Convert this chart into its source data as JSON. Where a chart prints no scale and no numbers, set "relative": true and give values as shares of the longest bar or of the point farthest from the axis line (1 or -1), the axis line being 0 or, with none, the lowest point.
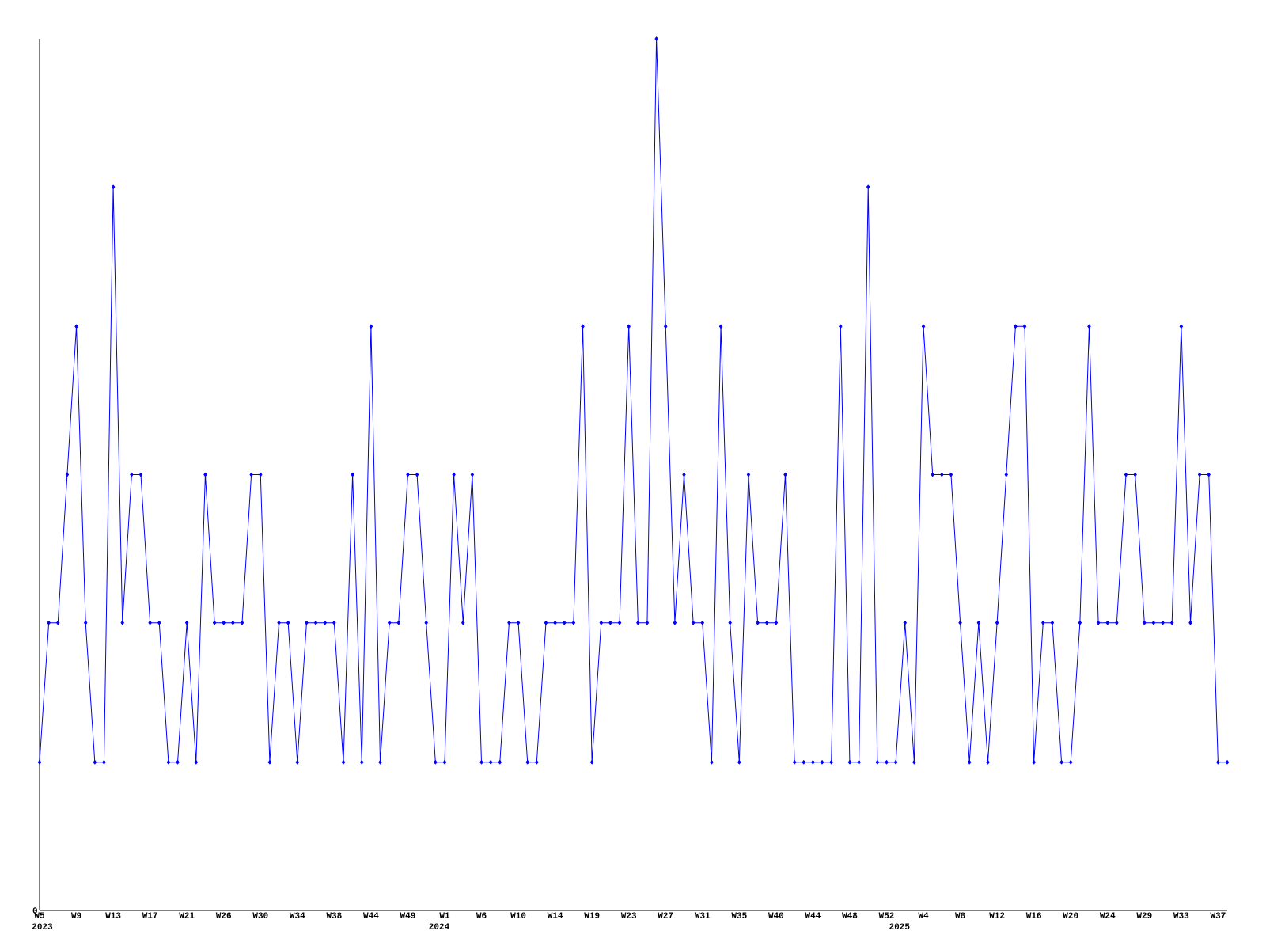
{
  "chart_data": {
    "type": "line",
    "relative": true,
    "marker": "diamond",
    "categories": [
      "W5",
      null,
      null,
      null,
      "W9",
      null,
      null,
      null,
      "W13",
      null,
      null,
      null,
      "W17",
      null,
      null,
      null,
      "W21",
      null,
      null,
      null,
      "W26",
      null,
      null,
      null,
      "W30",
      null,
      null,
      null,
      "W34",
      null,
      null,
      null,
      "W38",
      null,
      null,
      null,
      "W44",
      null,
      null,
      null,
      "W49",
      null,
      null,
      null,
      "W1",
      null,
      null,
      null,
      "W6",
      null,
      null,
      null,
      "W10",
      null,
      null,
      null,
      "W14",
      null,
      null,
      null,
      "W19",
      null,
      null,
      null,
      "W23",
      null,
      null,
      null,
      "W27",
      null,
      null,
      null,
      "W31",
      null,
      null,
      null,
      "W35",
      null,
      null,
      null,
      "W40",
      null,
      null,
      null,
      "W44",
      null,
      null,
      null,
      "W48",
      null,
      null,
      null,
      "W52",
      null,
      null,
      null,
      "W4",
      null,
      null,
      null,
      "W8",
      null,
      null,
      null,
      "W12",
      null,
      null,
      null,
      "W16",
      null,
      null,
      null,
      "W20",
      null,
      null,
      null,
      "W24",
      null,
      null,
      null,
      "W29",
      null,
      null,
      null,
      "W33",
      null,
      null,
      null,
      "W37",
      null
    ],
    "series": [
      {
        "color": "#0000ff",
        "values": [
          0.17,
          0.33,
          0.33,
          0.5,
          0.67,
          0.33,
          0.17,
          0.17,
          0.83,
          0.33,
          0.5,
          0.5,
          0.33,
          0.33,
          0.17,
          0.17,
          0.33,
          0.17,
          0.5,
          0.33,
          0.33,
          0.33,
          0.33,
          0.5,
          0.5,
          0.17,
          0.33,
          0.33,
          0.17,
          0.33,
          0.33,
          0.33,
          0.33,
          0.17,
          0.5,
          0.17,
          0.67,
          0.17,
          0.33,
          0.33,
          0.5,
          0.5,
          0.33,
          0.17,
          0.17,
          0.5,
          0.33,
          0.5,
          0.17,
          0.17,
          0.17,
          0.33,
          0.33,
          0.17,
          0.17,
          0.33,
          0.33,
          0.33,
          0.33,
          0.67,
          0.17,
          0.33,
          0.33,
          0.33,
          0.67,
          0.33,
          0.33,
          1,
          0.67,
          0.33,
          0.5,
          0.33,
          0.33,
          0.17,
          0.67,
          0.33,
          0.17,
          0.5,
          0.33,
          0.33,
          0.33,
          0.5,
          0.17,
          0.17,
          0.17,
          0.17,
          0.17,
          0.67,
          0.17,
          0.17,
          0.83,
          0.17,
          0.17,
          0.17,
          0.33,
          0.17,
          0.67,
          0.5,
          0.5,
          0.5,
          0.33,
          0.17,
          0.33,
          0.17,
          0.33,
          0.5,
          0.67,
          0.67,
          0.17,
          0.33,
          0.33,
          0.17,
          0.17,
          0.33,
          0.67,
          0.33,
          0.33,
          0.33,
          0.5,
          0.5,
          0.33,
          0.33,
          0.33,
          0.33,
          0.67,
          0.33,
          0.5,
          0.5,
          0.17,
          0.17
        ]
      }
    ],
    "annotations": [
      "0",
      "2023",
      "2024",
      "2025"
    ]
  }
}
